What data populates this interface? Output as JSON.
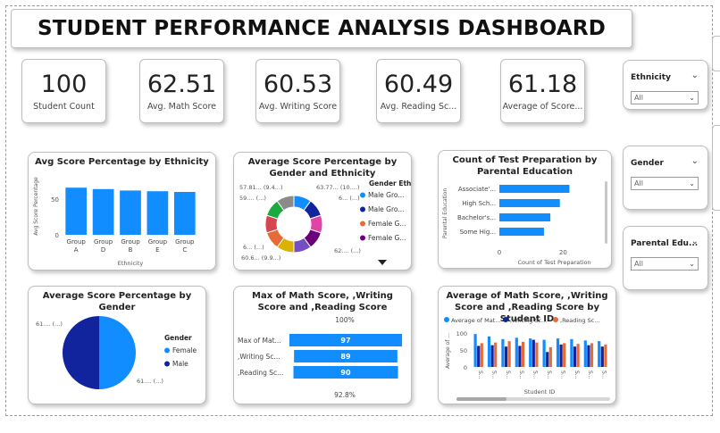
{
  "dashboard": {
    "title": "STUDENT PERFORMANCE ANALYSIS DASHBOARD"
  },
  "kpis": [
    {
      "value": "100",
      "label": "Student Count"
    },
    {
      "value": "62.51",
      "label": "Avg. Math Score"
    },
    {
      "value": "60.53",
      "label": "Avg. Writing Score"
    },
    {
      "value": "60.49",
      "label": "Avg. Reading Sc..."
    },
    {
      "value": "61.18",
      "label": "Average of Score..."
    }
  ],
  "slicers": [
    {
      "label": "Ethnicity",
      "value": "All"
    },
    {
      "label": "Gender",
      "value": "All"
    },
    {
      "label": "Parental Edu...",
      "value": "All"
    }
  ],
  "colors": {
    "blue": "#118dff",
    "navy": "#12239e",
    "orange": "#e66c37",
    "purple": "#6b007b",
    "pink": "#e044a7",
    "violet": "#744ec2",
    "yellow": "#d9b300",
    "teal": "#1aab40",
    "red": "#d64550",
    "gray": "#8b8b8b"
  },
  "chart_data": [
    {
      "type": "bar",
      "title": "Avg Score Percentage by Ethnicity",
      "xlabel": "Ethnicity",
      "ylabel": "Avg Score Percentage",
      "categories": [
        "Group A",
        "Group D",
        "Group B",
        "Group E",
        "Group C"
      ],
      "values": [
        66,
        64,
        62,
        61,
        60
      ],
      "ylim": [
        0,
        80
      ],
      "yticks": [
        "50",
        "0"
      ]
    },
    {
      "type": "pie",
      "title": "Average Score Percentage by Gender and Ethnicity",
      "legend_title": "Gender Eth...",
      "legend": [
        "Male Gro...",
        "Male Gro...",
        "Female G...",
        "Female G..."
      ],
      "data_labels": [
        "57.81... (9.4...)",
        "63.77... (10....)",
        "59.... (...)",
        "6... (...)",
        "6... (...)",
        "62.... (...)",
        "60.6... (9.9...)"
      ],
      "slices": [
        10,
        10,
        10,
        10,
        10,
        10,
        10,
        10,
        10,
        10
      ]
    },
    {
      "type": "bar",
      "orientation": "horizontal",
      "title": "Count of Test Preparation by Parental Education",
      "xlabel": "Count of Test Preparation",
      "ylabel": "Parental Education",
      "categories": [
        "Associate'...",
        "High Sch...",
        "Bachelor's...",
        "Some Hig..."
      ],
      "values": [
        22,
        19,
        16,
        14
      ],
      "xlim": [
        0,
        30
      ],
      "xticks": [
        "0",
        "20"
      ]
    },
    {
      "type": "pie",
      "title": "Average Score Percentage by Gender",
      "legend_title": "Gender",
      "legend": [
        "Female",
        "Male"
      ],
      "data_labels": [
        "61.... (...)",
        "61.... (...)"
      ],
      "slices": [
        50,
        50
      ]
    },
    {
      "type": "bar",
      "orientation": "horizontal",
      "title": "Max of Math Score, ,Writing Score and ,Reading Score",
      "categories": [
        "Max of Mat...",
        ",Writing Sc...",
        ",Reading Sc..."
      ],
      "values": [
        97,
        89,
        90
      ],
      "top_label": "100%",
      "bottom_label": "92.8%"
    },
    {
      "type": "bar",
      "title": "Average of Math Score, ,Writing Score and ,Reading Score by Student ID",
      "xlabel": "Student ID",
      "ylabel": "Average of ...",
      "legend": [
        "Average of Mat...",
        ",Writing Sc...",
        ",Reading Sc..."
      ],
      "categories": [
        "S...",
        "S...",
        "S...",
        "S...",
        "S...",
        "S...",
        "S...",
        "S...",
        "S...",
        "S..."
      ],
      "series": [
        {
          "name": "Average of Mat...",
          "values": [
            97,
            90,
            82,
            86,
            84,
            80,
            84,
            82,
            78,
            76
          ]
        },
        {
          "name": ",Writing Sc...",
          "values": [
            62,
            64,
            60,
            62,
            80,
            44,
            66,
            60,
            64,
            60
          ]
        },
        {
          "name": ",Reading Sc...",
          "values": [
            70,
            72,
            76,
            74,
            72,
            58,
            70,
            68,
            70,
            66
          ]
        }
      ],
      "ylim": [
        0,
        100
      ],
      "yticks": [
        "100",
        "50",
        "0"
      ]
    }
  ]
}
